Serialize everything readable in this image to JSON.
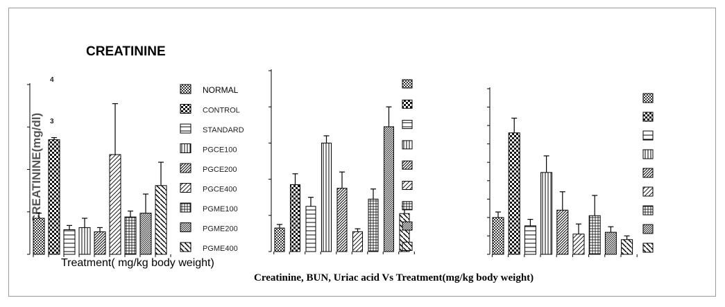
{
  "figure": {
    "caption": "Creatinine, BUN, Uriac acid Vs Treatment(mg/kg body weight)"
  },
  "chart_data": [
    {
      "type": "bar",
      "title": "CREATININE",
      "ylabel": "CREATININE(mg/dl)",
      "xlabel": "Treatment( mg/kg body weight)",
      "ylim": [
        0,
        4
      ],
      "yticks": [
        "4",
        "3"
      ],
      "categories": [
        "NORMAL",
        "CONTROL",
        "STANDARD",
        "PGCE100",
        "PGCE200",
        "PGCE400",
        "PGME100",
        "PGME200",
        "PGME400"
      ],
      "values": [
        0.85,
        2.7,
        0.58,
        0.63,
        0.53,
        2.35,
        0.88,
        0.97,
        1.62
      ],
      "errors": [
        0.12,
        0.05,
        0.1,
        0.22,
        0.1,
        1.2,
        0.14,
        0.45,
        0.55
      ],
      "legend": {
        "position": "right",
        "labels": [
          "NORMAL",
          "CONTROL",
          "STANDARD",
          "PGCE100",
          "PGCE200",
          "PGCE400",
          "PGME100",
          "PGME200",
          "PGME400"
        ]
      }
    },
    {
      "type": "bar",
      "title": "",
      "ylabel": "",
      "xlabel": "",
      "ylim": [
        0,
        5
      ],
      "values": [
        0.65,
        1.85,
        1.25,
        3.0,
        1.75,
        0.55,
        1.45,
        3.45,
        1.05
      ],
      "errors": [
        0.1,
        0.3,
        0.25,
        0.2,
        0.45,
        0.08,
        0.28,
        0.55,
        0.2
      ],
      "legend": {
        "position": "right",
        "labels": []
      }
    },
    {
      "type": "bar",
      "title": "",
      "ylabel": "",
      "xlabel": "",
      "ylim": [
        0,
        9
      ],
      "values": [
        2.0,
        6.6,
        1.55,
        4.45,
        2.4,
        1.1,
        2.1,
        1.2,
        0.8
      ],
      "errors": [
        0.3,
        0.8,
        0.35,
        0.9,
        1.0,
        0.55,
        1.1,
        0.3,
        0.2
      ],
      "legend": {
        "position": "right",
        "labels": []
      }
    }
  ]
}
